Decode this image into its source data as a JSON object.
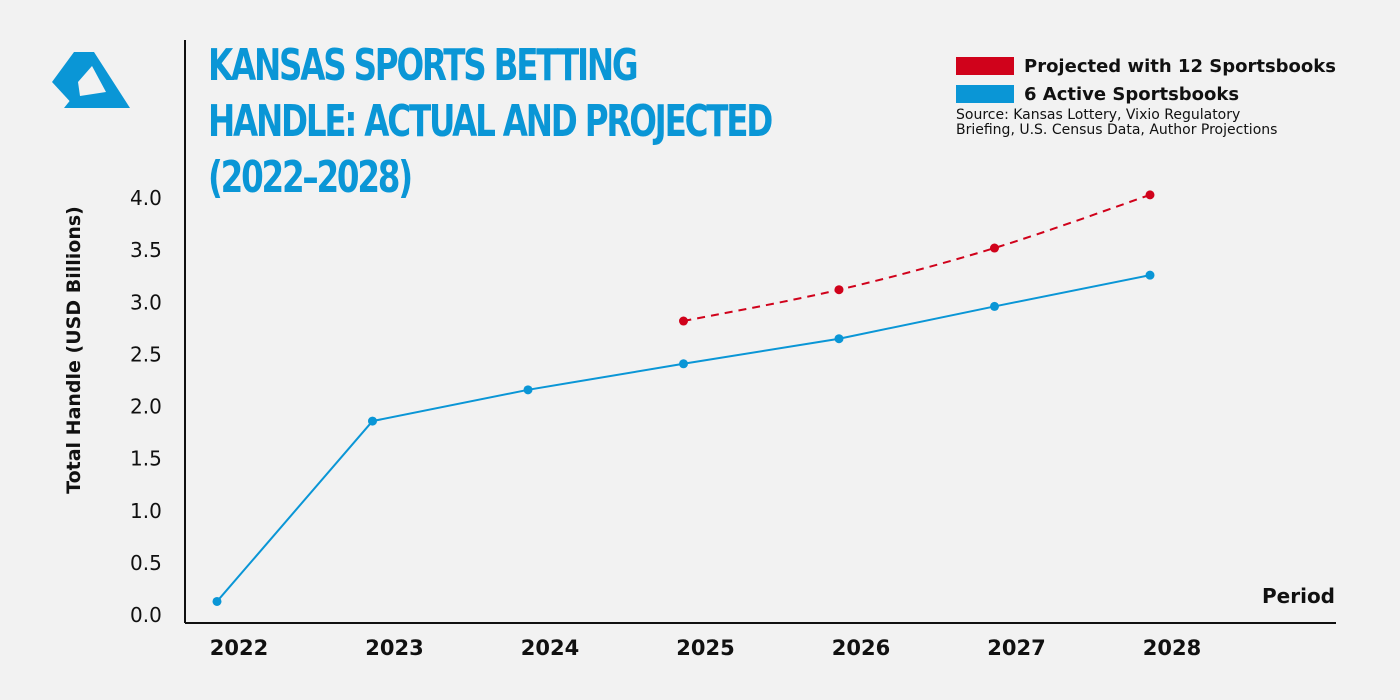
{
  "logo_name": "triangle-logo",
  "title_lines": [
    "KANSAS SPORTS BETTING",
    "HANDLE: ACTUAL AND PROJECTED",
    "(2022–2028)"
  ],
  "legend": [
    {
      "label": "Projected with 12 Sportsbooks",
      "color": "#d0021b"
    },
    {
      "label": "6 Active Sportsbooks",
      "color": "#0a96d6"
    }
  ],
  "source_lines": [
    "Source: Kansas Lottery, Vixio Regulatory",
    "Briefing, U.S. Census Data, Author Projections"
  ],
  "chart_data": {
    "type": "line",
    "title": "KANSAS SPORTS BETTING HANDLE: ACTUAL AND PROJECTED (2022–2028)",
    "xlabel": "Period",
    "ylabel": "Total Handle (USD Billions)",
    "categories": [
      "2022",
      "2023",
      "2024",
      "2025",
      "2026",
      "2027",
      "2028"
    ],
    "ylim": [
      0,
      4.0
    ],
    "yticks": [
      "0.0",
      "0.5",
      "1.0",
      "1.5",
      "2.0",
      "2.5",
      "3.0",
      "3.5",
      "4.0"
    ],
    "grid": false,
    "legend_position": "top-right",
    "series": [
      {
        "name": "Projected with 12 Sportsbooks",
        "color": "#d0021b",
        "style": "dashed",
        "values": [
          null,
          null,
          null,
          2.82,
          3.12,
          3.52,
          4.03
        ]
      },
      {
        "name": "6 Active Sportsbooks",
        "color": "#0a96d6",
        "style": "solid",
        "values": [
          0.13,
          1.86,
          2.16,
          2.41,
          2.65,
          2.96,
          3.26
        ]
      }
    ]
  }
}
